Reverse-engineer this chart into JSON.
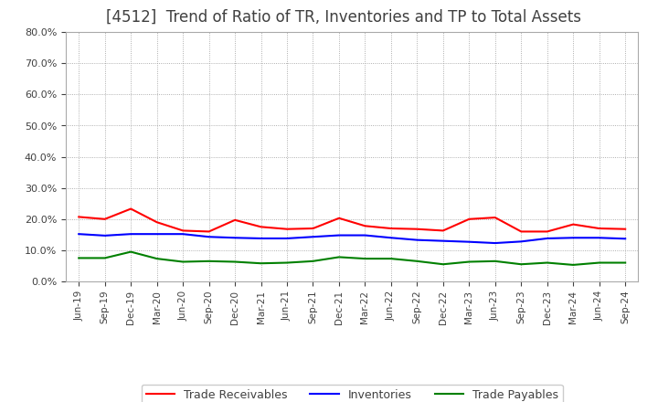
{
  "title": "[4512]  Trend of Ratio of TR, Inventories and TP to Total Assets",
  "x_labels": [
    "Jun-19",
    "Sep-19",
    "Dec-19",
    "Mar-20",
    "Jun-20",
    "Sep-20",
    "Dec-20",
    "Mar-21",
    "Jun-21",
    "Sep-21",
    "Dec-21",
    "Mar-22",
    "Jun-22",
    "Sep-22",
    "Dec-22",
    "Mar-23",
    "Jun-23",
    "Sep-23",
    "Dec-23",
    "Mar-24",
    "Jun-24",
    "Sep-24"
  ],
  "trade_receivables": [
    0.207,
    0.2,
    0.233,
    0.19,
    0.163,
    0.16,
    0.197,
    0.175,
    0.168,
    0.17,
    0.203,
    0.178,
    0.17,
    0.168,
    0.163,
    0.2,
    0.205,
    0.16,
    0.16,
    0.183,
    0.17,
    0.168
  ],
  "inventories": [
    0.152,
    0.147,
    0.152,
    0.152,
    0.152,
    0.143,
    0.14,
    0.138,
    0.138,
    0.143,
    0.148,
    0.148,
    0.14,
    0.133,
    0.13,
    0.127,
    0.123,
    0.128,
    0.138,
    0.14,
    0.14,
    0.137
  ],
  "trade_payables": [
    0.075,
    0.075,
    0.095,
    0.073,
    0.063,
    0.065,
    0.063,
    0.058,
    0.06,
    0.065,
    0.078,
    0.073,
    0.073,
    0.065,
    0.055,
    0.063,
    0.065,
    0.055,
    0.06,
    0.053,
    0.06,
    0.06
  ],
  "tr_color": "#ff0000",
  "inv_color": "#0000ff",
  "tp_color": "#008000",
  "ylim": [
    0.0,
    0.8
  ],
  "yticks": [
    0.0,
    0.1,
    0.2,
    0.3,
    0.4,
    0.5,
    0.6,
    0.7,
    0.8
  ],
  "bg_color": "#ffffff",
  "plot_bg_color": "#ffffff",
  "grid_color": "#999999",
  "title_fontsize": 12,
  "title_color": "#404040"
}
